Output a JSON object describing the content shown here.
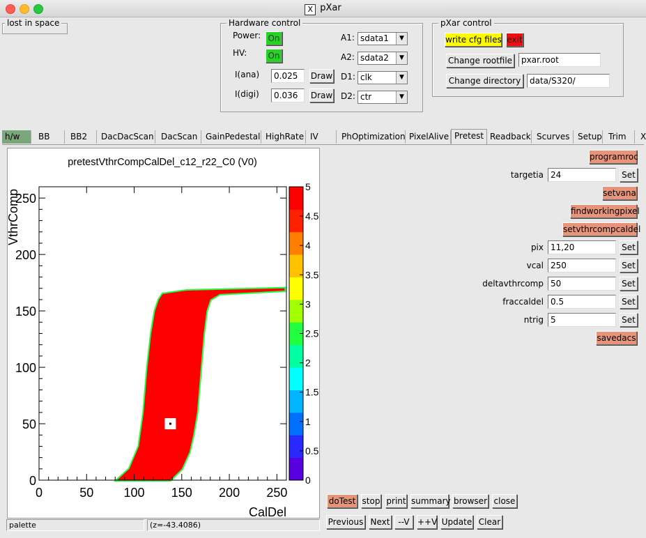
{
  "window": {
    "title": "pXar"
  },
  "lost_in_space": {
    "label": "lost in space"
  },
  "hardware": {
    "title": "Hardware control",
    "power_label": "Power:",
    "power_state": "On",
    "hv_label": "HV:",
    "hv_state": "On",
    "iana_label": "I(ana)",
    "iana_value": "0.025",
    "idigi_label": "I(digi)",
    "idigi_value": "0.036",
    "draw_label": "Draw",
    "a1_label": "A1:",
    "a1_value": "sdata1",
    "a2_label": "A2:",
    "a2_value": "sdata2",
    "d1_label": "D1:",
    "d1_value": "clk",
    "d2_label": "D2:",
    "d2_value": "ctr"
  },
  "pxar": {
    "title": "pXar control",
    "write_cfg": "write cfg files",
    "exit": "exit",
    "change_rootfile": "Change rootfile",
    "rootfile": "pxar.root",
    "change_directory": "Change directory",
    "directory": "data/S320/"
  },
  "tabs": [
    "h/w",
    "BB",
    "BB2",
    "DacDacScan",
    "DacScan",
    "GainPedestal",
    "HighRate",
    "IV",
    "PhOptimization",
    "PixelAlive",
    "Pretest",
    "Readback",
    "Scurves",
    "Setup",
    "Trim"
  ],
  "tabs_more": "X",
  "active_tab": "Pretest",
  "pretest": {
    "programroc": "programroc",
    "targetia_label": "targetia",
    "targetia_value": "24",
    "setvana": "setvana",
    "findworkingpixel": "findworkingpixel",
    "setvthrcompcaldel": "setvthrcompcaldel",
    "pix_label": "pix",
    "pix_value": "11,20",
    "vcal_label": "vcal",
    "vcal_value": "250",
    "deltavthrcomp_label": "deltavthrcomp",
    "deltavthrcomp_value": "50",
    "fraccaldel_label": "fraccaldel",
    "fraccaldel_value": "0.5",
    "ntrig_label": "ntrig",
    "ntrig_value": "5",
    "set_label": "Set",
    "savedacs": "savedacs"
  },
  "controls": {
    "dotest": "doTest",
    "stop": "stop",
    "print": "print",
    "summary": "summary",
    "browser": "browser",
    "close": "close",
    "previous": "Previous",
    "next": "Next",
    "minus_v": "--V",
    "plus_v": "++V",
    "update": "Update",
    "clear": "Clear"
  },
  "status": {
    "left": "palette",
    "right": "(z=-43.4086)"
  },
  "chart_data": {
    "type": "heatmap",
    "title": "pretestVthrCompCalDel_c12_r22_C0 (V0)",
    "xlabel": "CalDel",
    "ylabel": "VthrComp",
    "xlim": [
      0,
      260
    ],
    "ylim": [
      0,
      260
    ],
    "x_ticks": [
      "0",
      "50",
      "100",
      "150",
      "200",
      "250"
    ],
    "y_ticks": [
      "0",
      "50",
      "100",
      "150",
      "200",
      "250"
    ],
    "z_range": [
      0,
      5
    ],
    "z_ticks": [
      "0",
      "0.5",
      "1",
      "1.5",
      "2",
      "2.5",
      "3",
      "3.5",
      "4",
      "4.5",
      "5"
    ],
    "palette": [
      "#5a00e0",
      "#2828ff",
      "#0070ff",
      "#00b4ff",
      "#00ffff",
      "#00ffa0",
      "#20ff40",
      "#a0ff00",
      "#ffff00",
      "#ffc000",
      "#ff8000",
      "#ff2000",
      "#ff0000"
    ],
    "fill_value": 5,
    "region": {
      "left_edge": [
        [
          82,
          0
        ],
        [
          95,
          10
        ],
        [
          105,
          30
        ],
        [
          110,
          60
        ],
        [
          114,
          100
        ],
        [
          118,
          130
        ],
        [
          122,
          150
        ],
        [
          126,
          160
        ],
        [
          130,
          165
        ],
        [
          155,
          168
        ],
        [
          258,
          170
        ]
      ],
      "right_edge": [
        [
          138,
          0
        ],
        [
          150,
          10
        ],
        [
          158,
          25
        ],
        [
          162,
          40
        ],
        [
          166,
          60
        ],
        [
          170,
          100
        ],
        [
          173,
          130
        ],
        [
          176,
          150
        ],
        [
          180,
          160
        ],
        [
          190,
          165
        ],
        [
          258,
          168
        ]
      ]
    },
    "marker": {
      "x": 138,
      "y": 50
    }
  }
}
